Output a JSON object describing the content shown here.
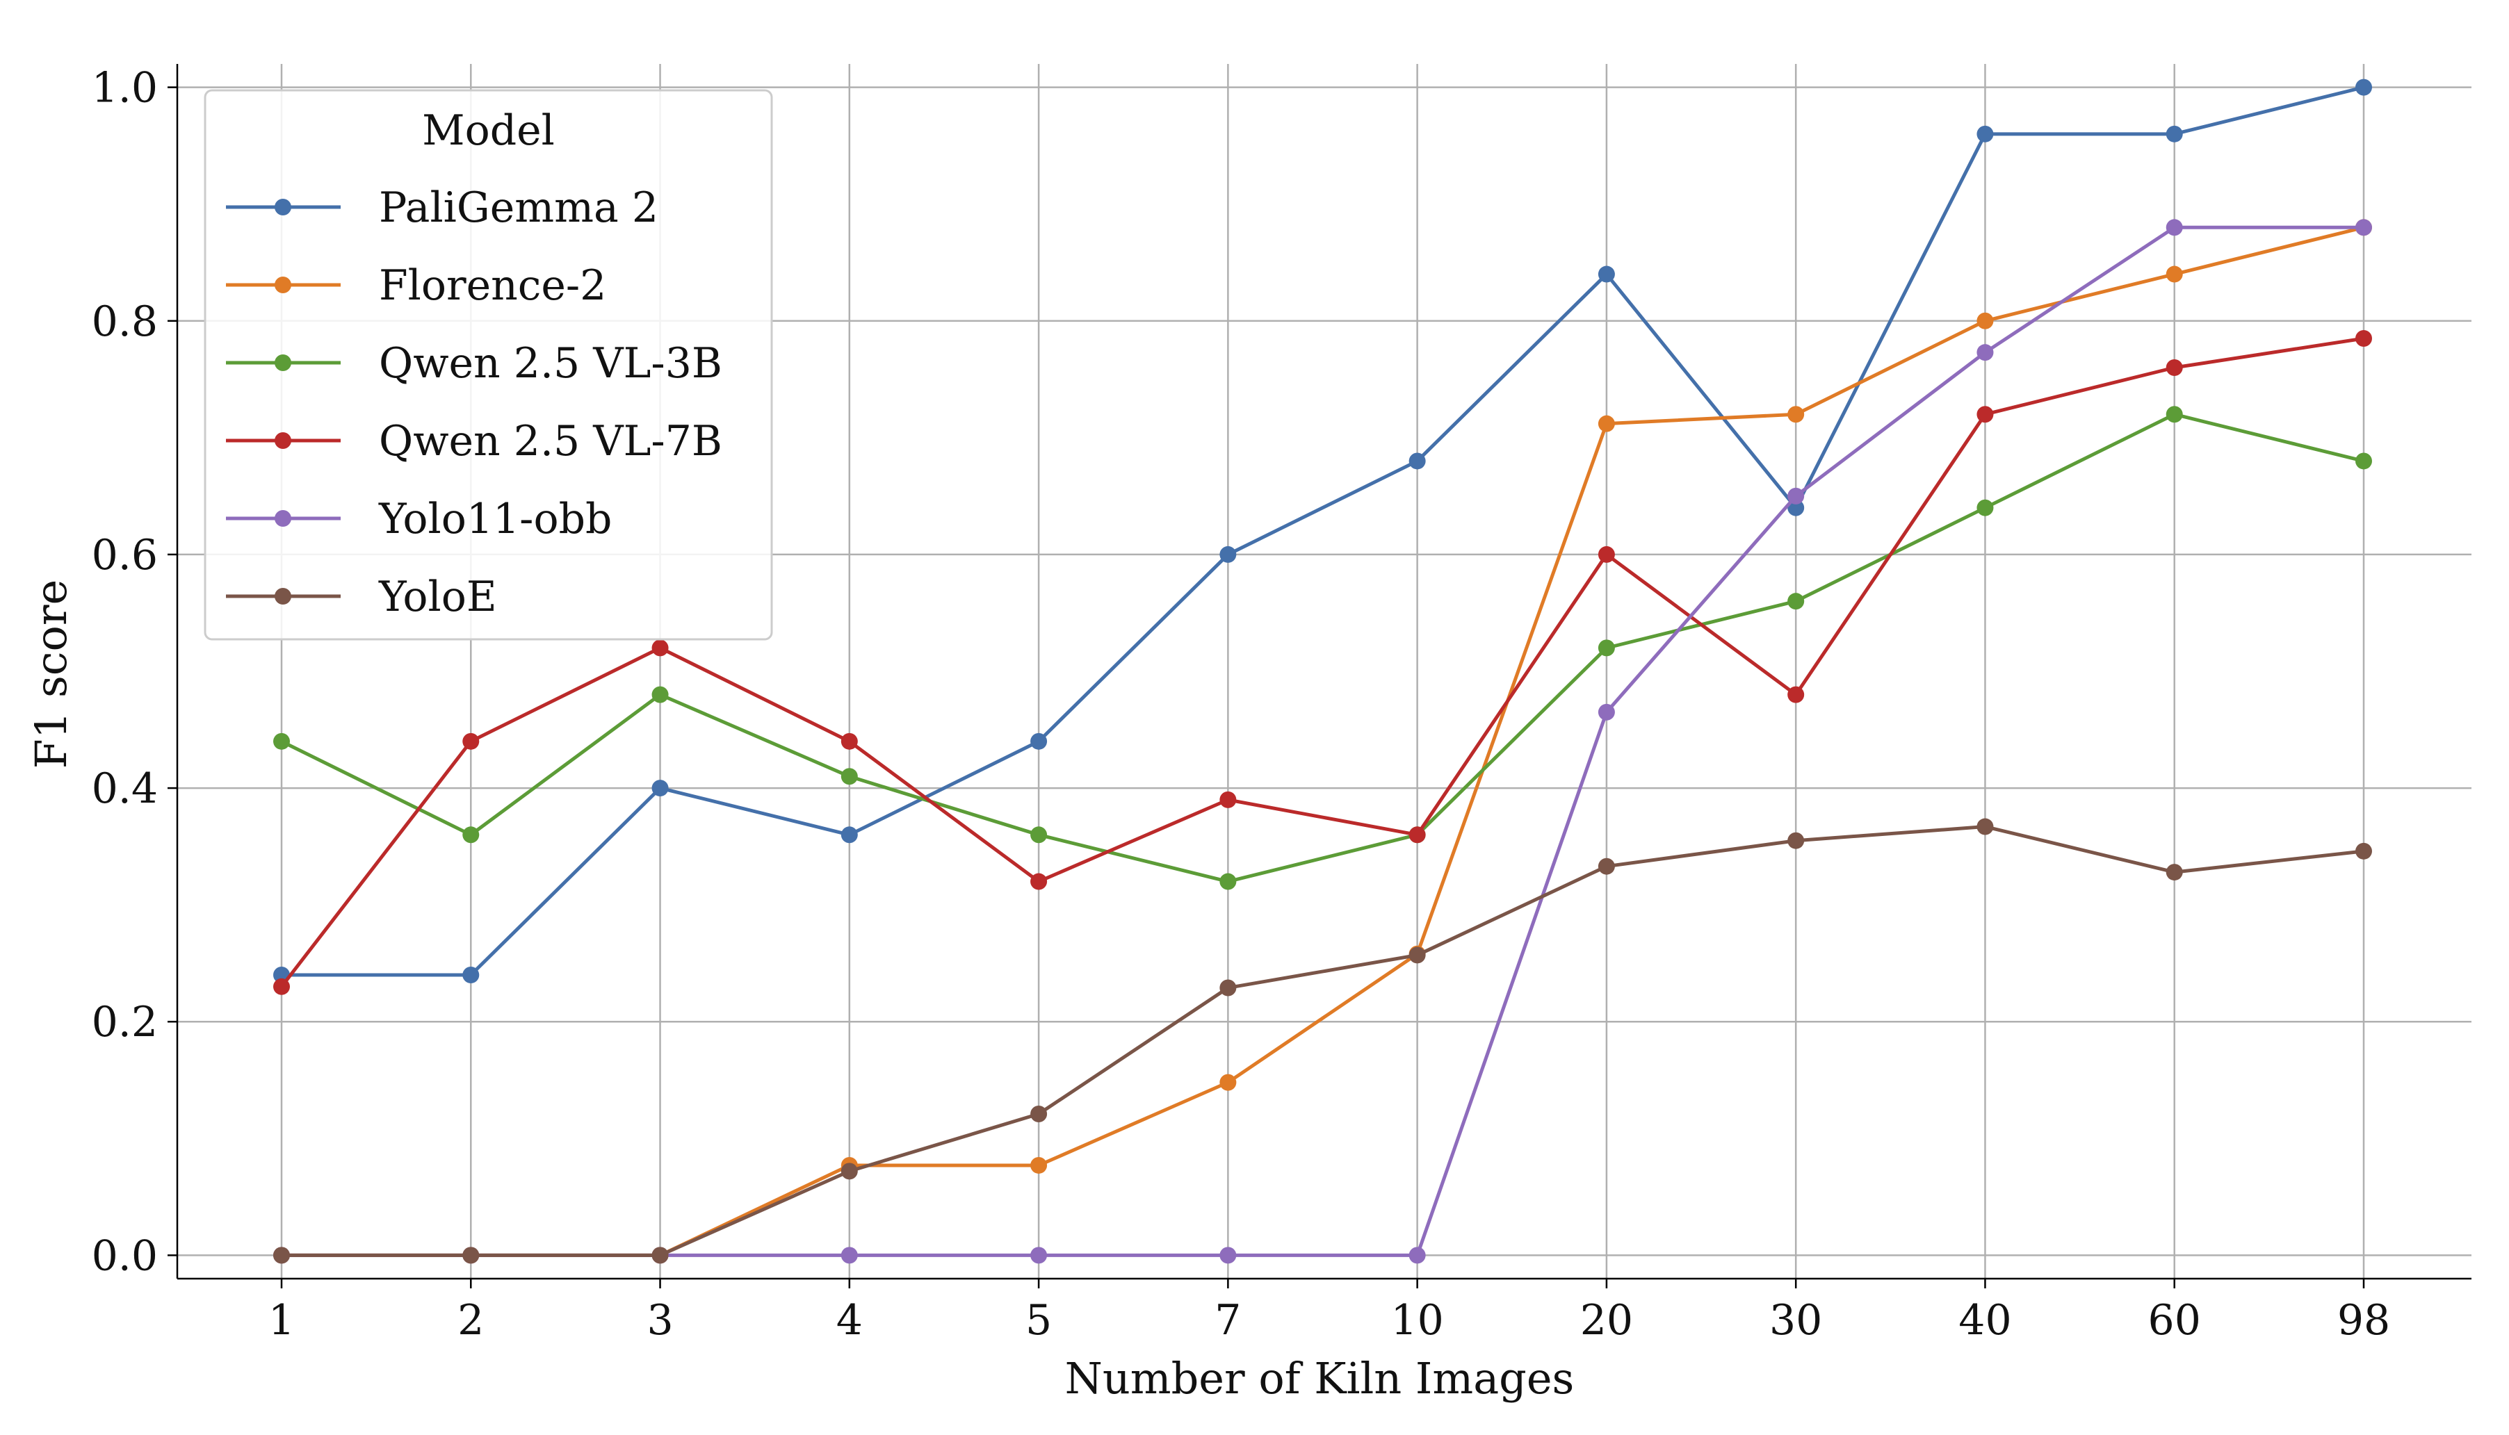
{
  "chart_data": {
    "type": "line",
    "xlabel": "Number of Kiln Images",
    "ylabel": "F1 score",
    "categories": [
      "1",
      "2",
      "3",
      "4",
      "5",
      "7",
      "10",
      "20",
      "30",
      "40",
      "60",
      "98"
    ],
    "ylim": [
      -0.02,
      1.02
    ],
    "yticks": [
      "0.0",
      "0.2",
      "0.4",
      "0.6",
      "0.8",
      "1.0"
    ],
    "grid": true,
    "legend": {
      "title": "Model",
      "placement": "top-left"
    },
    "series": [
      {
        "name": "PaliGemma 2",
        "color": "#4470aa",
        "values": [
          0.24,
          0.24,
          0.4,
          0.36,
          0.44,
          0.6,
          0.68,
          0.84,
          0.64,
          0.96,
          0.96,
          1.0
        ]
      },
      {
        "name": "Florence-2",
        "color": "#e07b26",
        "values": [
          0.0,
          0.0,
          0.0,
          0.077,
          0.077,
          0.148,
          0.258,
          0.712,
          0.72,
          0.8,
          0.84,
          0.88
        ]
      },
      {
        "name": "Qwen 2.5 VL-3B",
        "color": "#5c9c37",
        "values": [
          0.44,
          0.36,
          0.48,
          0.41,
          0.36,
          0.32,
          0.36,
          0.52,
          0.56,
          0.64,
          0.72,
          0.68
        ]
      },
      {
        "name": "Qwen 2.5 VL-7B",
        "color": "#bb2a2a",
        "values": [
          0.23,
          0.44,
          0.52,
          0.44,
          0.32,
          0.39,
          0.36,
          0.6,
          0.48,
          0.72,
          0.76,
          0.785
        ]
      },
      {
        "name": "Yolo11-obb",
        "color": "#8e6cbc",
        "values": [
          0.0,
          0.0,
          0.0,
          0.0,
          0.0,
          0.0,
          0.0,
          0.465,
          0.65,
          0.773,
          0.88,
          0.88
        ]
      },
      {
        "name": "YoloE",
        "color": "#7a5548",
        "values": [
          0.0,
          0.0,
          0.0,
          0.072,
          0.121,
          0.229,
          0.257,
          0.333,
          0.355,
          0.367,
          0.328,
          0.346
        ]
      }
    ]
  }
}
